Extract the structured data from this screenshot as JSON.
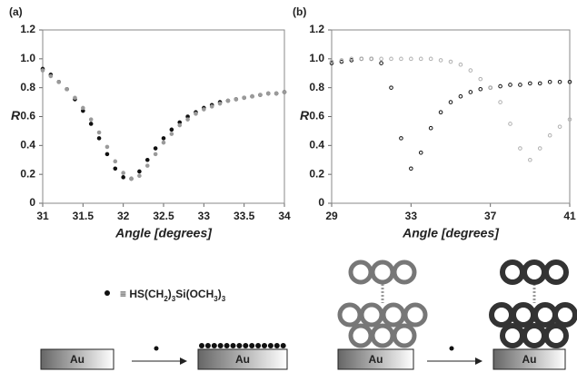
{
  "chart_data": [
    {
      "type": "scatter",
      "panel_label": "(a)",
      "x_label": "Angle [degrees]",
      "y_label": "R",
      "xlim": [
        31,
        34
      ],
      "xticks": [
        31,
        31.5,
        32,
        32.5,
        33,
        33.5,
        34
      ],
      "ylim": [
        0,
        1.2
      ],
      "yticks": [
        0,
        0.2,
        0.4,
        0.6,
        0.8,
        {
          "value": 1.0,
          "label": "1.0"
        },
        1.2
      ],
      "x": [
        31,
        31.1,
        31.2,
        31.3,
        31.4,
        31.5,
        31.6,
        31.7,
        31.8,
        31.9,
        32,
        32.1,
        32.2,
        32.3,
        32.4,
        32.5,
        32.6,
        32.7,
        32.8,
        32.9,
        33,
        33.1,
        33.2,
        33.3,
        33.4,
        33.5,
        33.6,
        33.7,
        33.8,
        33.9,
        34
      ],
      "series": [
        {
          "color": "#111111",
          "values": [
            0.93,
            0.89,
            0.84,
            0.79,
            0.72,
            0.64,
            0.55,
            0.45,
            0.34,
            0.24,
            0.18,
            0.17,
            0.22,
            0.3,
            0.38,
            0.45,
            0.51,
            0.56,
            0.6,
            0.63,
            0.66,
            0.68,
            0.7,
            0.71,
            0.72,
            0.73,
            0.74,
            0.75,
            0.76,
            0.76,
            0.77
          ]
        },
        {
          "color": "#9a9a9a",
          "values": [
            0.92,
            0.88,
            0.84,
            0.79,
            0.73,
            0.66,
            0.58,
            0.49,
            0.39,
            0.29,
            0.21,
            0.17,
            0.19,
            0.26,
            0.34,
            0.42,
            0.48,
            0.54,
            0.58,
            0.62,
            0.65,
            0.67,
            0.69,
            0.71,
            0.72,
            0.73,
            0.74,
            0.75,
            0.76,
            0.76,
            0.77
          ]
        }
      ]
    },
    {
      "type": "scatter",
      "panel_label": "(b)",
      "x_label": "Angle [degrees]",
      "y_label": "R",
      "xlim": [
        29,
        41
      ],
      "xticks": [
        29,
        33,
        37,
        41
      ],
      "ylim": [
        0,
        1.2
      ],
      "yticks": [
        0,
        0.2,
        0.4,
        0.6,
        0.8,
        {
          "value": 1.0,
          "label": "1.0"
        },
        1.2
      ],
      "x": [
        29,
        29.5,
        30,
        30.5,
        31,
        31.5,
        32,
        32.5,
        33,
        33.5,
        34,
        34.5,
        35,
        35.5,
        36,
        36.5,
        37,
        37.5,
        38,
        38.5,
        39,
        39.5,
        40,
        40.5,
        41
      ],
      "series": [
        {
          "color": "#111111",
          "values": [
            0.97,
            0.98,
            0.99,
            1.0,
            1.0,
            0.97,
            0.8,
            0.45,
            0.24,
            0.35,
            0.52,
            0.63,
            0.7,
            0.74,
            0.77,
            0.79,
            0.8,
            0.81,
            0.82,
            0.82,
            0.83,
            0.83,
            0.84,
            0.84,
            0.84
          ]
        },
        {
          "color": "#b0b0b0",
          "values": [
            0.98,
            0.99,
            1.0,
            1.0,
            1.0,
            1.0,
            1.0,
            1.0,
            1.0,
            1.0,
            1.0,
            0.99,
            0.98,
            0.96,
            0.92,
            0.86,
            0.8,
            0.7,
            0.55,
            0.38,
            0.3,
            0.38,
            0.47,
            0.53,
            0.58
          ]
        }
      ]
    }
  ],
  "diagram": {
    "formula_parts": [
      "≡ HS(CH",
      "2",
      ")",
      "3",
      "Si(OCH",
      "3",
      ")",
      "3"
    ],
    "substrate_labels": [
      "Au",
      "Au",
      "Au",
      "Au"
    ]
  }
}
